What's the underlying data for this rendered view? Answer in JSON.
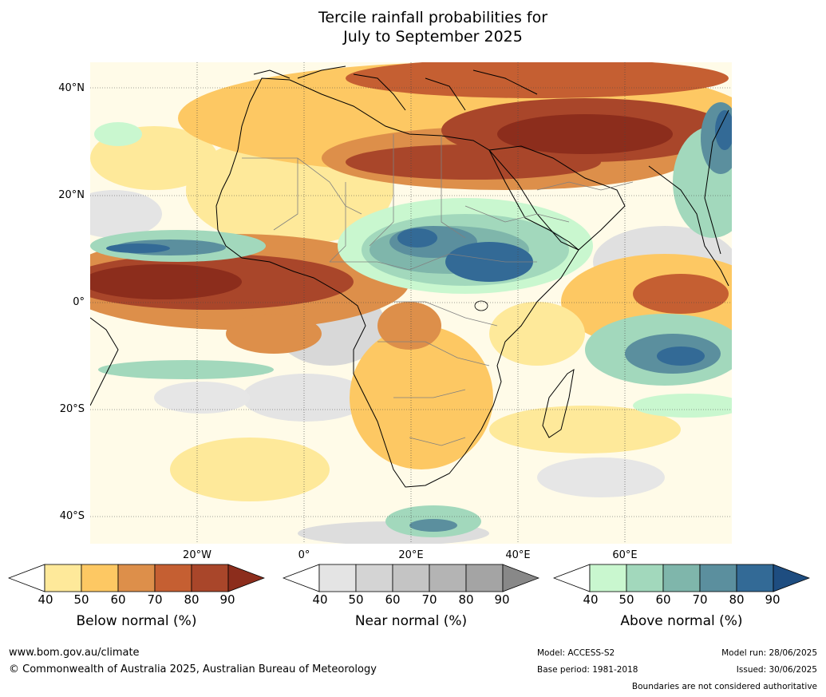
{
  "title": {
    "line1": "Tercile rainfall probabilities for",
    "line2": "July to September 2025"
  },
  "map": {
    "lat_labels": [
      "40°N",
      "20°N",
      "0°",
      "20°S",
      "40°S"
    ],
    "lon_labels": [
      "20°W",
      "0°",
      "20°E",
      "40°E",
      "60°E"
    ]
  },
  "colorbars": [
    {
      "name": "below",
      "title": "Below normal (%)",
      "ticks": [
        "40",
        "50",
        "60",
        "70",
        "80",
        "90"
      ],
      "colors": [
        "#fee99a",
        "#fdc863",
        "#dd8f4a",
        "#c55f32",
        "#a9462a"
      ],
      "under_color": "#ffffff",
      "over_color": "#8c2d1c"
    },
    {
      "name": "near",
      "title": "Near normal (%)",
      "ticks": [
        "40",
        "50",
        "60",
        "70",
        "80",
        "90"
      ],
      "colors": [
        "#e4e4e4",
        "#d4d4d4",
        "#c4c4c4",
        "#b4b4b4",
        "#a4a4a4"
      ],
      "under_color": "#ffffff",
      "over_color": "#888888"
    },
    {
      "name": "above",
      "title": "Above normal (%)",
      "ticks": [
        "40",
        "50",
        "60",
        "70",
        "80",
        "90"
      ],
      "colors": [
        "#c9f7cf",
        "#a2d8bc",
        "#7fb6ab",
        "#5b8f9e",
        "#336a96"
      ],
      "under_color": "#ffffff",
      "over_color": "#1e4d80"
    }
  ],
  "footer": {
    "website": "www.bom.gov.au/climate",
    "copyright": "© Commonwealth of Australia 2025, Australian Bureau of Meteorology",
    "model": "Model: ACCESS-S2",
    "base_period": "Base period: 1981-2018",
    "model_run": "Model run: 28/06/2025",
    "issued": "Issued: 30/06/2025",
    "disclaimer": "Boundaries are not considered authoritative"
  }
}
